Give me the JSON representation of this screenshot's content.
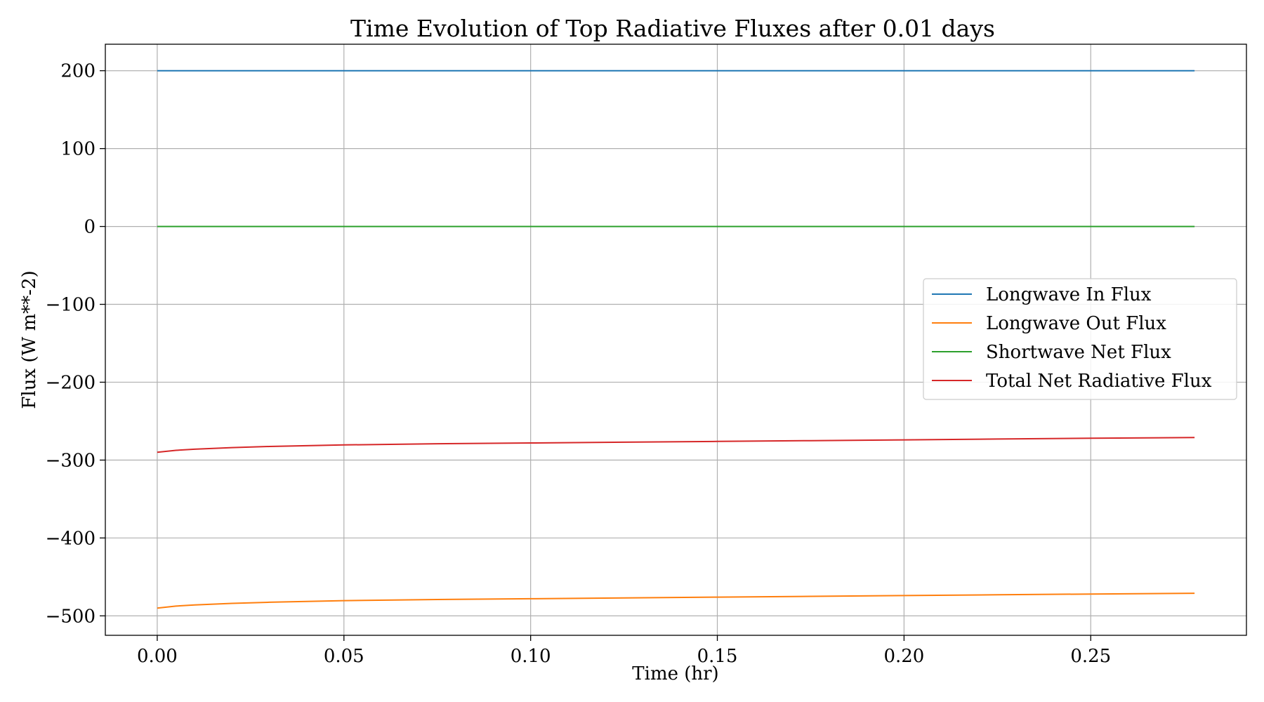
{
  "chart_data": {
    "type": "line",
    "title": "Time Evolution of Top Radiative Fluxes after 0.01 days",
    "xlabel": "Time (hr)",
    "ylabel": "Flux (W m**-2)",
    "xlim": [
      -0.0139,
      0.2917
    ],
    "ylim": [
      -525,
      234
    ],
    "xticks": [
      0.0,
      0.05,
      0.1,
      0.15,
      0.2,
      0.25
    ],
    "xtick_labels": [
      "0.00",
      "0.05",
      "0.10",
      "0.15",
      "0.20",
      "0.25"
    ],
    "yticks": [
      200,
      100,
      0,
      -100,
      -200,
      -300,
      -400,
      -500
    ],
    "ytick_labels": [
      "200",
      "100",
      "0",
      "−100",
      "−200",
      "−300",
      "−400",
      "−500"
    ],
    "grid": true,
    "legend_position": "center-right",
    "x": [
      0.0,
      0.005,
      0.01,
      0.02,
      0.03,
      0.05,
      0.075,
      0.1,
      0.125,
      0.15,
      0.175,
      0.2,
      0.225,
      0.25,
      0.2778
    ],
    "series": [
      {
        "name": "Longwave In Flux",
        "color": "#1f77b4",
        "values": [
          200,
          200,
          200,
          200,
          200,
          200,
          200,
          200,
          200,
          200,
          200,
          200,
          200,
          200,
          200
        ]
      },
      {
        "name": "Longwave Out Flux",
        "color": "#ff7f0e",
        "values": [
          -490,
          -487.5,
          -486,
          -484,
          -482.5,
          -480.5,
          -479,
          -478,
          -477,
          -476,
          -475,
          -474,
          -473,
          -472,
          -471
        ]
      },
      {
        "name": "Shortwave Net Flux",
        "color": "#2ca02c",
        "values": [
          0,
          0,
          0,
          0,
          0,
          0,
          0,
          0,
          0,
          0,
          0,
          0,
          0,
          0,
          0
        ]
      },
      {
        "name": "Total Net Radiative Flux",
        "color": "#d62728",
        "values": [
          -290,
          -287.5,
          -286,
          -284,
          -282.5,
          -280.5,
          -279,
          -278,
          -277,
          -276,
          -275,
          -274,
          -273,
          -272,
          -271
        ]
      }
    ]
  }
}
